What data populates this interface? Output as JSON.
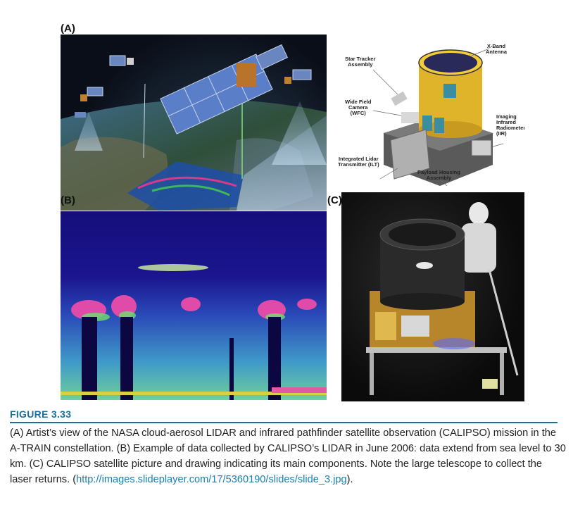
{
  "panels": {
    "a_label": "(A)",
    "b_label": "(B)",
    "c_label": "(C)"
  },
  "diagram": {
    "star_tracker": "Star Tracker\nAssembly",
    "x_band": "X-Band\nAntenna",
    "wfc": "Wide Field\nCamera\n(WFC)",
    "iir": "Imaging\nInfrared\nRadiometer\n(IIR)",
    "ilt": "Integrated Lidar\nTransmitter (ILT)",
    "payload": "Payload Housing\nAssembly"
  },
  "figure": {
    "title": "FIGURE 3.33",
    "caption_text": "(A) Artist’s view of the NASA cloud-aerosol LIDAR and infrared pathfinder satellite observation (CALIPSO) mission in the A-TRAIN constellation. (B) Example of data collected by CALIPSO’s LIDAR in June 2006: data extend from sea level to 30 km. (C) CALIPSO satellite picture and drawing indicating its main components. Note the large telescope to collect the laser returns. (",
    "caption_link": "http://images.slideplayer.com/17/5360190/slides/slide_3.jpg",
    "caption_end": ")."
  }
}
